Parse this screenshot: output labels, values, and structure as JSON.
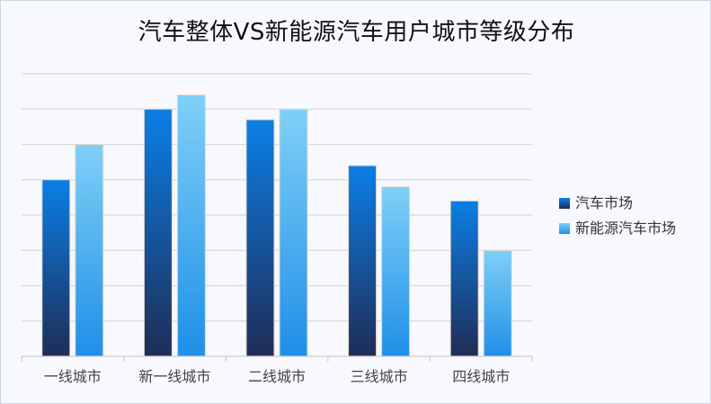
{
  "chart_data": {
    "type": "bar",
    "title": "汽车整体VS新能源汽车用户城市等级分布",
    "categories": [
      "一线城市",
      "新一线城市",
      "二线城市",
      "三线城市",
      "四线城市"
    ],
    "series": [
      {
        "name": "汽车市场",
        "values": [
          5,
          7,
          6.7,
          5.4,
          4.4
        ],
        "gradient": [
          "#1f2d57",
          "#0b7fe6"
        ]
      },
      {
        "name": "新能源汽车市场",
        "values": [
          6,
          7.4,
          7,
          4.8,
          3
        ],
        "gradient": [
          "#1f8fe8",
          "#7fd0f7"
        ]
      }
    ],
    "xlabel": "",
    "ylabel": "",
    "ylim": [
      0,
      8
    ],
    "grid": true,
    "legend_position": "right"
  }
}
